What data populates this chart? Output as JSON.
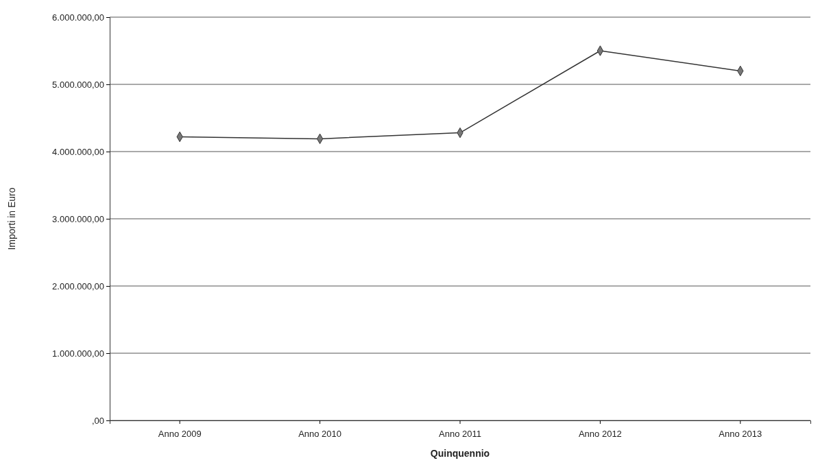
{
  "chart_data": {
    "type": "line",
    "xlabel": "Quinquennio",
    "ylabel": "Importi in Euro",
    "categories": [
      "Anno 2009",
      "Anno 2010",
      "Anno 2011",
      "Anno 2012",
      "Anno 2013"
    ],
    "series": [
      {
        "color": "#333333",
        "values": [
          4220000,
          4190000,
          4280000,
          5500000,
          5200000
        ]
      }
    ],
    "ylim": [
      0,
      6000000
    ],
    "yticks": [
      {
        "value": 0,
        "label": ",00"
      },
      {
        "value": 1000000,
        "label": "1.000.000,00"
      },
      {
        "value": 2000000,
        "label": "2.000.000,00"
      },
      {
        "value": 3000000,
        "label": "3.000.000,00"
      },
      {
        "value": 4000000,
        "label": "4.000.000,00"
      },
      {
        "value": 5000000,
        "label": "5.000.000,00"
      },
      {
        "value": 6000000,
        "label": "6.000.000,00"
      }
    ],
    "grid": "y",
    "marker": "diamond",
    "line_style": "solid"
  }
}
